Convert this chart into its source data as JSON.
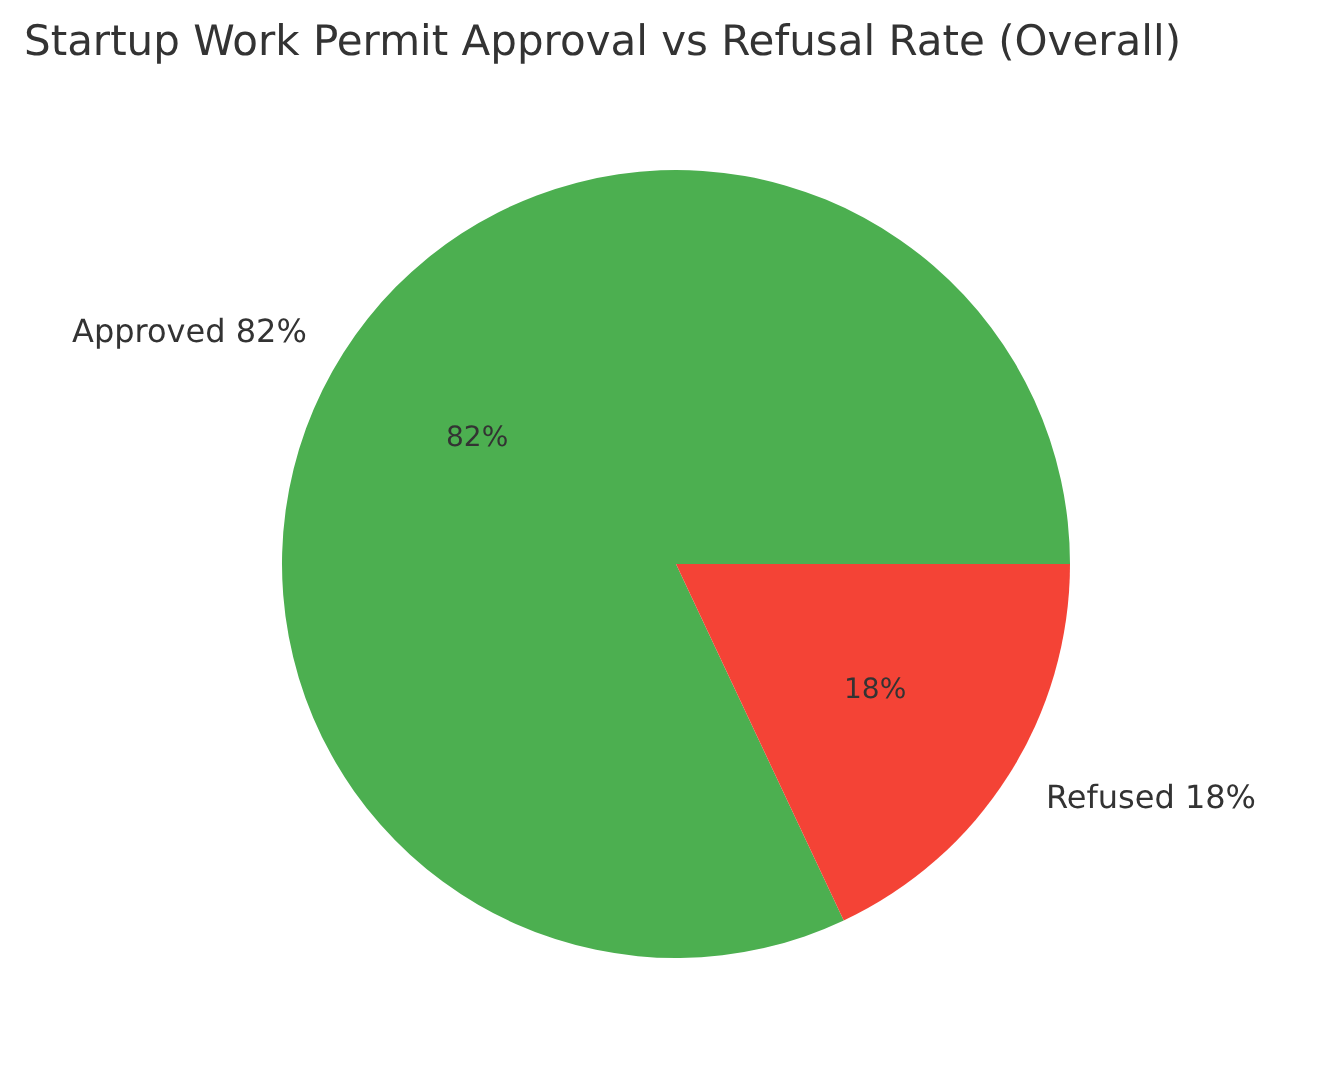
{
  "chart_data": {
    "type": "pie",
    "title": "Startup Work Permit Approval vs Refusal Rate (Overall)",
    "categories": [
      "Approved 82%",
      "Refused 18%"
    ],
    "values": [
      82,
      18
    ],
    "colors": [
      "#4caf50",
      "#f44336"
    ],
    "value_labels": [
      "82%",
      "18%"
    ],
    "legend": false
  }
}
